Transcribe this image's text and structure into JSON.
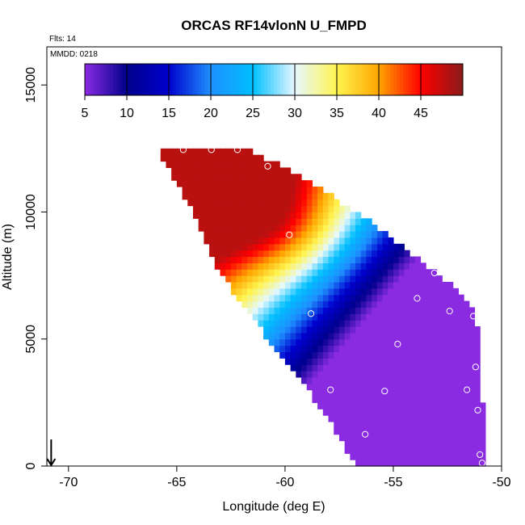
{
  "chart_data": {
    "type": "heatmap",
    "title": "ORCAS RF14vlonN U_FMPD",
    "annotations": {
      "flights": "Flts: 14",
      "date": "MMDD: 0218"
    },
    "xlabel": "Longitude (deg E)",
    "ylabel": "Altitude (m)",
    "xlim": [
      -71,
      -50
    ],
    "ylim": [
      0,
      16500
    ],
    "x_ticks": [
      -70,
      -65,
      -60,
      -55,
      -50
    ],
    "x_tick_labels": [
      "-70",
      "-65",
      "-60",
      "-55",
      "-50"
    ],
    "y_ticks": [
      0,
      5000,
      10000,
      15000
    ],
    "y_tick_labels": [
      "0",
      "5000",
      "10000",
      "15000"
    ],
    "colorbar": {
      "min": 5,
      "max": 50,
      "ticks": [
        5,
        10,
        15,
        20,
        25,
        30,
        35,
        40,
        45
      ],
      "tick_labels": [
        "5",
        "10",
        "15",
        "20",
        "25",
        "30",
        "35",
        "40",
        "45"
      ],
      "colors": [
        "#8a2be2",
        "#00008b",
        "#0000cd",
        "#1e90ff",
        "#00bfff",
        "#e6f8ff",
        "#fff44f",
        "#ffa500",
        "#ff0000",
        "#8b1a1a"
      ]
    },
    "field": {
      "lon_bounds_lower": [
        [
          0,
          -56.9
        ],
        [
          2000,
          -58.2
        ],
        [
          4000,
          -60.0
        ],
        [
          6000,
          -61.8
        ],
        [
          8000,
          -63.4
        ],
        [
          10000,
          -64.4
        ],
        [
          12500,
          -66.0
        ]
      ],
      "lon_bounds_upper": [
        [
          0,
          -50.9
        ],
        [
          5000,
          -51.1
        ],
        [
          6500,
          -51.6
        ],
        [
          7500,
          -53.0
        ],
        [
          9500,
          -56.0
        ],
        [
          11500,
          -59.5
        ],
        [
          12500,
          -62.0
        ]
      ],
      "center_lon": -60.5,
      "center_wind": 25,
      "center_alt": 6000,
      "vertical_shear_per_km": 4.5,
      "zonal_tilt_km_per_deg": 1.0,
      "jet_core_lon": -60.0,
      "jet_core_alt": 9500,
      "max_speed": 48,
      "min_speed": 5
    },
    "observations": [
      {
        "lon": -65.9,
        "alt": 12450
      },
      {
        "lon": -64.7,
        "alt": 12450
      },
      {
        "lon": -63.4,
        "alt": 12450
      },
      {
        "lon": -62.2,
        "alt": 12450
      },
      {
        "lon": -60.8,
        "alt": 11800
      },
      {
        "lon": -59.8,
        "alt": 9100
      },
      {
        "lon": -58.8,
        "alt": 6000
      },
      {
        "lon": -53.1,
        "alt": 7600
      },
      {
        "lon": -53.9,
        "alt": 6600
      },
      {
        "lon": -52.4,
        "alt": 6100
      },
      {
        "lon": -51.3,
        "alt": 5900
      },
      {
        "lon": -54.8,
        "alt": 4800
      },
      {
        "lon": -51.2,
        "alt": 3900
      },
      {
        "lon": -57.9,
        "alt": 3000
      },
      {
        "lon": -55.4,
        "alt": 2950
      },
      {
        "lon": -51.6,
        "alt": 3000
      },
      {
        "lon": -51.1,
        "alt": 2200
      },
      {
        "lon": -56.3,
        "alt": 1250
      },
      {
        "lon": -57.1,
        "alt": 100
      },
      {
        "lon": -56.9,
        "alt": 100
      },
      {
        "lon": -57.4,
        "alt": 80
      },
      {
        "lon": -51.0,
        "alt": 450
      },
      {
        "lon": -50.9,
        "alt": 120
      }
    ],
    "aircraft_marker": {
      "lon": -70.8,
      "alt": 600
    }
  }
}
